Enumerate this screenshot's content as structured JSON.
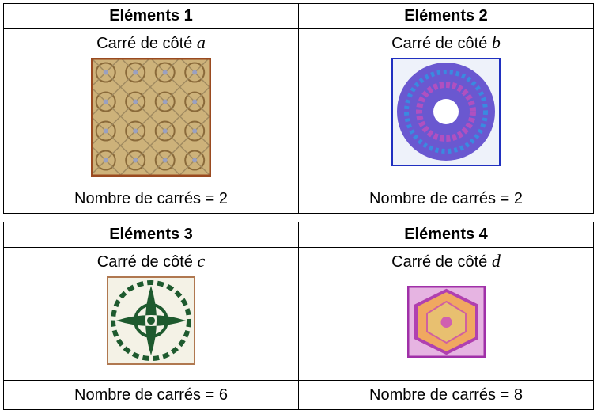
{
  "tables": [
    {
      "columns": [
        {
          "header": "Eléments 1",
          "caption": "Carré de côté",
          "variable": "a",
          "count": "Nombre de carrés = 2"
        },
        {
          "header": "Eléments 2",
          "caption": "Carré de côté",
          "variable": "b",
          "count": "Nombre de carrés = 2"
        }
      ]
    },
    {
      "columns": [
        {
          "header": "Eléments 3",
          "caption": "Carré de côté",
          "variable": "c",
          "count": "Nombre de carrés = 6"
        },
        {
          "header": "Eléments 4",
          "caption": "Carré de côté",
          "variable": "d",
          "count": "Nombre de carrés = 8"
        }
      ]
    }
  ]
}
